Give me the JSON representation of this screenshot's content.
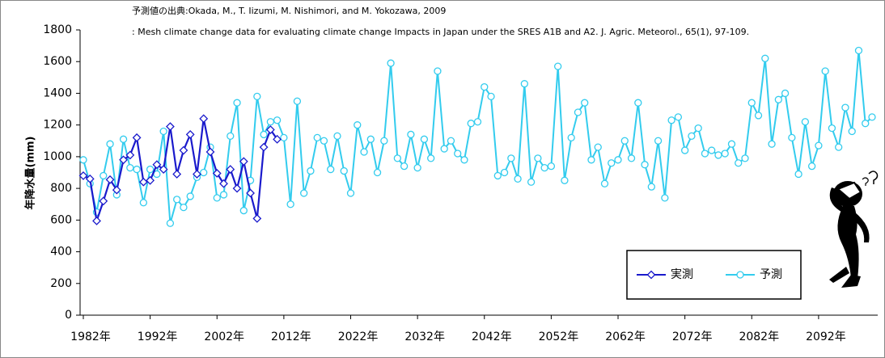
{
  "chart_data": {
    "type": "line",
    "annotations": [
      "予測値の出典:Okada, M., T. Iizumi, M. Nishimori, and M. Yokozawa, 2009",
      ": Mesh climate change data for evaluating climate change Impacts in Japan under the SRES A1B and A2. J. Agric. Meteorol., 65(1), 97-109."
    ],
    "y_label": "年降水量(mm)",
    "x": [
      1982,
      1983,
      1984,
      1985,
      1986,
      1987,
      1988,
      1989,
      1990,
      1991,
      1992,
      1993,
      1994,
      1995,
      1996,
      1997,
      1998,
      1999,
      2000,
      2001,
      2002,
      2003,
      2004,
      2005,
      2006,
      2007,
      2008,
      2009,
      2010,
      2011,
      2012,
      2013,
      2014,
      2015,
      2016,
      2017,
      2018,
      2019,
      2020,
      2021,
      2022,
      2023,
      2024,
      2025,
      2026,
      2027,
      2028,
      2029,
      2030,
      2031,
      2032,
      2033,
      2034,
      2035,
      2036,
      2037,
      2038,
      2039,
      2040,
      2041,
      2042,
      2043,
      2044,
      2045,
      2046,
      2047,
      2048,
      2049,
      2050,
      2051,
      2052,
      2053,
      2054,
      2055,
      2056,
      2057,
      2058,
      2059,
      2060,
      2061,
      2062,
      2063,
      2064,
      2065,
      2066,
      2067,
      2068,
      2069,
      2070,
      2071,
      2072,
      2073,
      2074,
      2075,
      2076,
      2077,
      2078,
      2079,
      2080,
      2081,
      2082,
      2083,
      2084,
      2085,
      2086,
      2087,
      2088,
      2089,
      2090,
      2091,
      2092,
      2093,
      2094,
      2095,
      2096,
      2097,
      2098,
      2099,
      2100
    ],
    "series": [
      {
        "name": "実測",
        "color": "#1a1acc",
        "marker": "diamond",
        "values": [
          880,
          860,
          595,
          720,
          855,
          790,
          980,
          1010,
          1120,
          840,
          850,
          950,
          920,
          1190,
          890,
          1040,
          1140,
          890,
          1240,
          1030,
          895,
          830,
          920,
          800,
          970,
          770,
          610,
          1060,
          1170,
          1110,
          null,
          null,
          null,
          null,
          null,
          null,
          null,
          null,
          null,
          null,
          null,
          null,
          null,
          null,
          null,
          null,
          null,
          null,
          null,
          null,
          null,
          null,
          null,
          null,
          null,
          null,
          null,
          null,
          null,
          null,
          null,
          null,
          null,
          null,
          null,
          null,
          null,
          null,
          null,
          null,
          null,
          null,
          null,
          null,
          null,
          null,
          null,
          null,
          null,
          null,
          null,
          null,
          null,
          null,
          null,
          null,
          null,
          null,
          null,
          null,
          null,
          null,
          null,
          null,
          null,
          null,
          null,
          null,
          null,
          null,
          null,
          null,
          null,
          null,
          null,
          null,
          null,
          null,
          null,
          null,
          null,
          null,
          null,
          null,
          null,
          null,
          null,
          null,
          null
        ]
      },
      {
        "name": "予測",
        "color": "#33ccee",
        "marker": "circle",
        "values": [
          980,
          830,
          650,
          880,
          1080,
          760,
          1110,
          930,
          920,
          710,
          920,
          890,
          1160,
          580,
          730,
          680,
          750,
          870,
          900,
          1060,
          740,
          760,
          1130,
          1340,
          660,
          850,
          1380,
          1140,
          1220,
          1230,
          1120,
          700,
          1350,
          770,
          910,
          1120,
          1100,
          920,
          1130,
          910,
          770,
          1200,
          1030,
          1110,
          900,
          1100,
          1590,
          990,
          940,
          1140,
          930,
          1110,
          990,
          1540,
          1050,
          1100,
          1020,
          980,
          1210,
          1220,
          1440,
          1380,
          880,
          900,
          990,
          860,
          1460,
          840,
          990,
          930,
          940,
          1570,
          850,
          1120,
          1280,
          1340,
          980,
          1060,
          830,
          960,
          980,
          1100,
          990,
          1340,
          950,
          810,
          1100,
          740,
          1230,
          1250,
          1040,
          1130,
          1180,
          1020,
          1040,
          1010,
          1020,
          1080,
          960,
          990,
          1340,
          1260,
          1620,
          1080,
          1360,
          1400,
          1120,
          890,
          1220,
          940,
          1070,
          1540,
          1180,
          1060,
          1310,
          1160,
          1670,
          1210,
          1250
        ]
      }
    ],
    "xlim": [
      1982,
      2100
    ],
    "xticks": [
      {
        "value": 1982,
        "label": "1982年"
      },
      {
        "value": 1992,
        "label": "1992年"
      },
      {
        "value": 2002,
        "label": "2002年"
      },
      {
        "value": 2012,
        "label": "2012年"
      },
      {
        "value": 2022,
        "label": "2022年"
      },
      {
        "value": 2032,
        "label": "2032年"
      },
      {
        "value": 2042,
        "label": "2042年"
      },
      {
        "value": 2052,
        "label": "2052年"
      },
      {
        "value": 2062,
        "label": "2062年"
      },
      {
        "value": 2072,
        "label": "2072年"
      },
      {
        "value": 2082,
        "label": "2082年"
      },
      {
        "value": 2092,
        "label": "2092年"
      }
    ],
    "ylim": [
      0,
      1800
    ],
    "yticks": [
      0,
      200,
      400,
      600,
      800,
      1000,
      1200,
      1400,
      1600,
      1800
    ],
    "legend": "lower-right"
  }
}
